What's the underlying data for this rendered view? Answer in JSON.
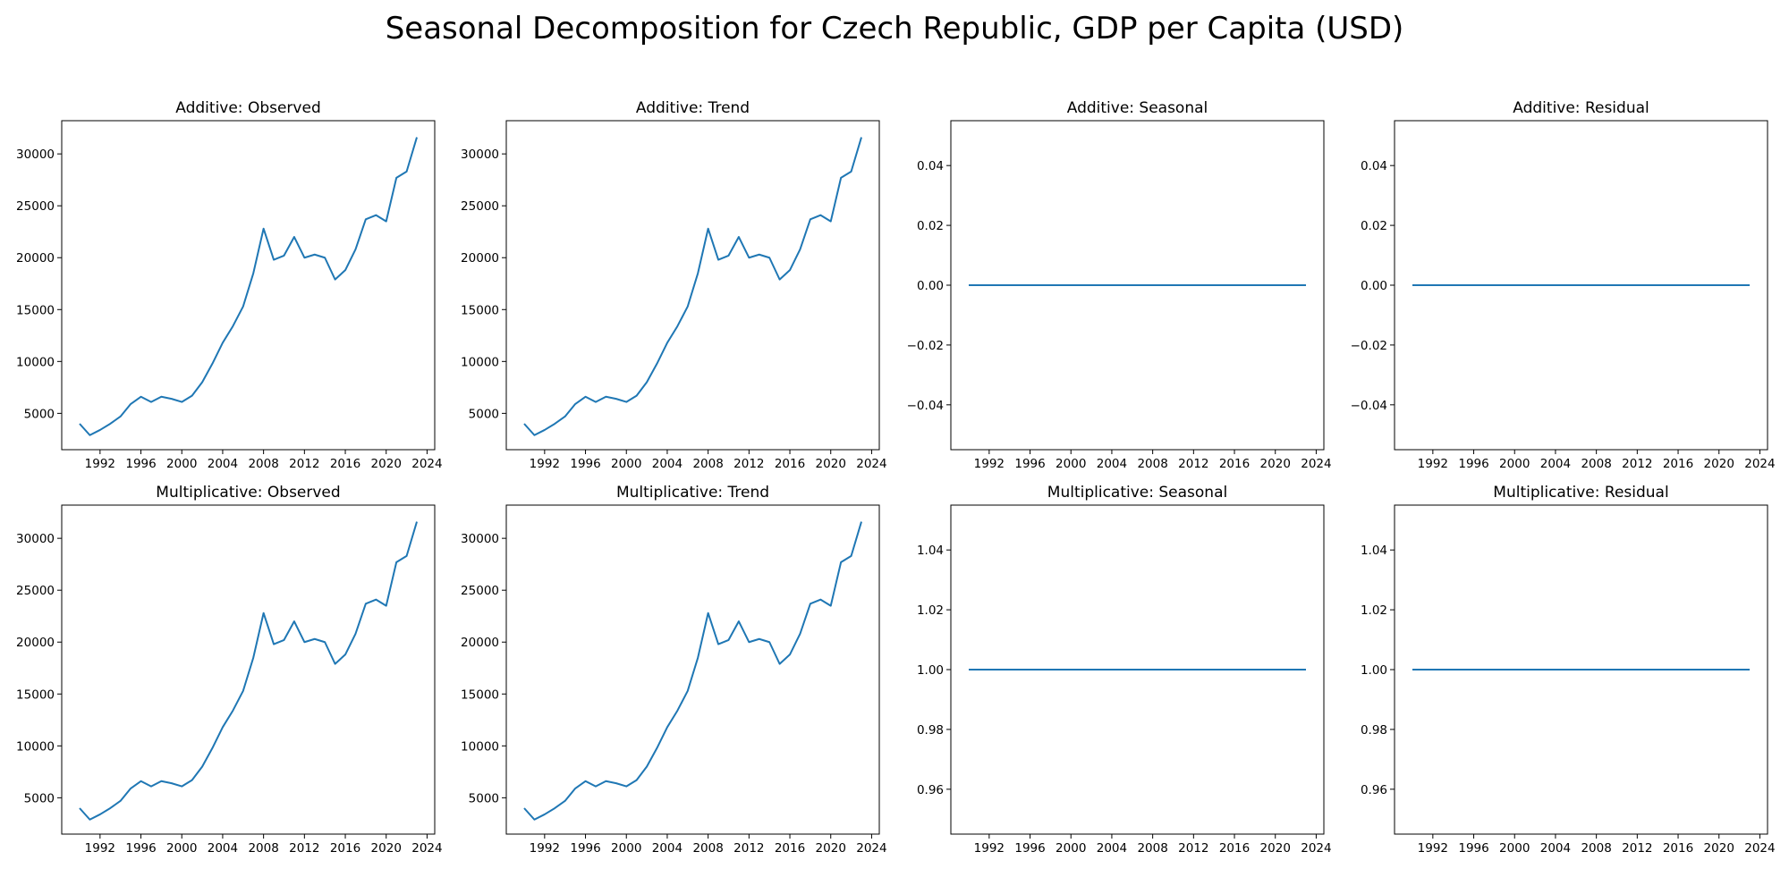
{
  "suptitle": "Seasonal Decomposition for Czech Republic, GDP per Capita (USD)",
  "colors": {
    "line": "#1f77b4",
    "axes": "#000000"
  },
  "years": [
    1990,
    1991,
    1992,
    1993,
    1994,
    1995,
    1996,
    1997,
    1998,
    1999,
    2000,
    2001,
    2002,
    2003,
    2004,
    2005,
    2006,
    2007,
    2008,
    2009,
    2010,
    2011,
    2012,
    2013,
    2014,
    2015,
    2016,
    2017,
    2018,
    2019,
    2020,
    2021,
    2022,
    2023
  ],
  "gdp": [
    4000,
    2900,
    3400,
    4000,
    4700,
    5900,
    6600,
    6100,
    6600,
    6400,
    6100,
    6700,
    8000,
    9800,
    11800,
    13400,
    15300,
    18500,
    22800,
    19800,
    20200,
    22000,
    20000,
    20300,
    20000,
    17900,
    18800,
    20800,
    23700,
    24100,
    23500,
    27700,
    28300,
    31600
  ],
  "chart_data": [
    {
      "id": "add-observed",
      "type": "line",
      "title": "Additive: Observed",
      "series_key": "gdp",
      "ylim": [
        1500,
        33200
      ],
      "yticks": [
        5000,
        10000,
        15000,
        20000,
        25000,
        30000
      ],
      "ytick_labels": [
        "5000",
        "10000",
        "15000",
        "20000",
        "25000",
        "30000"
      ],
      "xlim": [
        1988.25,
        2024.75
      ],
      "xticks": [
        1992,
        1996,
        2000,
        2004,
        2008,
        2012,
        2016,
        2020,
        2024
      ],
      "xtick_labels": [
        "1992",
        "1996",
        "2000",
        "2004",
        "2008",
        "2012",
        "2016",
        "2020",
        "2024"
      ]
    },
    {
      "id": "add-trend",
      "type": "line",
      "title": "Additive: Trend",
      "series_key": "gdp",
      "ylim": [
        1500,
        33200
      ],
      "yticks": [
        5000,
        10000,
        15000,
        20000,
        25000,
        30000
      ],
      "ytick_labels": [
        "5000",
        "10000",
        "15000",
        "20000",
        "25000",
        "30000"
      ],
      "xlim": [
        1988.25,
        2024.75
      ],
      "xticks": [
        1992,
        1996,
        2000,
        2004,
        2008,
        2012,
        2016,
        2020,
        2024
      ],
      "xtick_labels": [
        "1992",
        "1996",
        "2000",
        "2004",
        "2008",
        "2012",
        "2016",
        "2020",
        "2024"
      ]
    },
    {
      "id": "add-seasonal",
      "type": "line",
      "title": "Additive: Seasonal",
      "constant": 0.0,
      "ylim": [
        -0.055,
        0.055
      ],
      "yticks": [
        -0.04,
        -0.02,
        0.0,
        0.02,
        0.04
      ],
      "ytick_labels": [
        "−0.04",
        "−0.02",
        "0.00",
        "0.02",
        "0.04"
      ],
      "xlim": [
        1988.25,
        2024.75
      ],
      "xticks": [
        1992,
        1996,
        2000,
        2004,
        2008,
        2012,
        2016,
        2020,
        2024
      ],
      "xtick_labels": [
        "1992",
        "1996",
        "2000",
        "2004",
        "2008",
        "2012",
        "2016",
        "2020",
        "2024"
      ]
    },
    {
      "id": "add-residual",
      "type": "line",
      "title": "Additive: Residual",
      "constant": 0.0,
      "ylim": [
        -0.055,
        0.055
      ],
      "yticks": [
        -0.04,
        -0.02,
        0.0,
        0.02,
        0.04
      ],
      "ytick_labels": [
        "−0.04",
        "−0.02",
        "0.00",
        "0.02",
        "0.04"
      ],
      "xlim": [
        1988.25,
        2024.75
      ],
      "xticks": [
        1992,
        1996,
        2000,
        2004,
        2008,
        2012,
        2016,
        2020,
        2024
      ],
      "xtick_labels": [
        "1992",
        "1996",
        "2000",
        "2004",
        "2008",
        "2012",
        "2016",
        "2020",
        "2024"
      ]
    },
    {
      "id": "mul-observed",
      "type": "line",
      "title": "Multiplicative: Observed",
      "series_key": "gdp",
      "ylim": [
        1500,
        33200
      ],
      "yticks": [
        5000,
        10000,
        15000,
        20000,
        25000,
        30000
      ],
      "ytick_labels": [
        "5000",
        "10000",
        "15000",
        "20000",
        "25000",
        "30000"
      ],
      "xlim": [
        1988.25,
        2024.75
      ],
      "xticks": [
        1992,
        1996,
        2000,
        2004,
        2008,
        2012,
        2016,
        2020,
        2024
      ],
      "xtick_labels": [
        "1992",
        "1996",
        "2000",
        "2004",
        "2008",
        "2012",
        "2016",
        "2020",
        "2024"
      ]
    },
    {
      "id": "mul-trend",
      "type": "line",
      "title": "Multiplicative: Trend",
      "series_key": "gdp",
      "ylim": [
        1500,
        33200
      ],
      "yticks": [
        5000,
        10000,
        15000,
        20000,
        25000,
        30000
      ],
      "ytick_labels": [
        "5000",
        "10000",
        "15000",
        "20000",
        "25000",
        "30000"
      ],
      "xlim": [
        1988.25,
        2024.75
      ],
      "xticks": [
        1992,
        1996,
        2000,
        2004,
        2008,
        2012,
        2016,
        2020,
        2024
      ],
      "xtick_labels": [
        "1992",
        "1996",
        "2000",
        "2004",
        "2008",
        "2012",
        "2016",
        "2020",
        "2024"
      ]
    },
    {
      "id": "mul-seasonal",
      "type": "line",
      "title": "Multiplicative: Seasonal",
      "constant": 1.0,
      "ylim": [
        0.945,
        1.055
      ],
      "yticks": [
        0.96,
        0.98,
        1.0,
        1.02,
        1.04
      ],
      "ytick_labels": [
        "0.96",
        "0.98",
        "1.00",
        "1.02",
        "1.04"
      ],
      "xlim": [
        1988.25,
        2024.75
      ],
      "xticks": [
        1992,
        1996,
        2000,
        2004,
        2008,
        2012,
        2016,
        2020,
        2024
      ],
      "xtick_labels": [
        "1992",
        "1996",
        "2000",
        "2004",
        "2008",
        "2012",
        "2016",
        "2020",
        "2024"
      ]
    },
    {
      "id": "mul-residual",
      "type": "line",
      "title": "Multiplicative: Residual",
      "constant": 1.0,
      "ylim": [
        0.945,
        1.055
      ],
      "yticks": [
        0.96,
        0.98,
        1.0,
        1.02,
        1.04
      ],
      "ytick_labels": [
        "0.96",
        "0.98",
        "1.00",
        "1.02",
        "1.04"
      ],
      "xlim": [
        1988.25,
        2024.75
      ],
      "xticks": [
        1992,
        1996,
        2000,
        2004,
        2008,
        2012,
        2016,
        2020,
        2024
      ],
      "xtick_labels": [
        "1992",
        "1996",
        "2000",
        "2004",
        "2008",
        "2012",
        "2016",
        "2020",
        "2024"
      ]
    }
  ]
}
